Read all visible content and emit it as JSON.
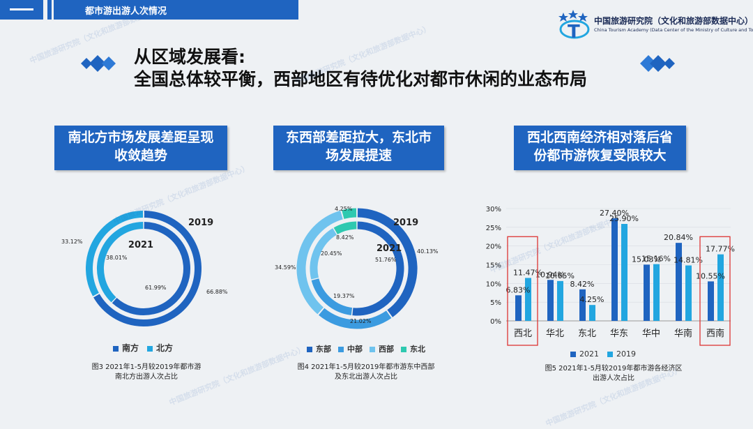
{
  "header": {
    "section_title": "都市游出游人次情况",
    "org_name": "中国旅游研究院（文化和旅游部数据中心）",
    "org_name_en": "China Tourism Academy (Data Center of the Ministry of Culture and Tourism)"
  },
  "headline": {
    "line1": "从区域发展看:",
    "line2": "全国总体较平衡，西部地区有待优化对都市休闲的业态布局"
  },
  "panels": [
    {
      "title_line1": "南北方市场发展差距呈现",
      "title_line2": "收敛趋势",
      "caption_line1": "图3  2021年1-5月较2019年都市游",
      "caption_line2": "南北方出游人次占比"
    },
    {
      "title_line1": "东西部差距拉大，东北市",
      "title_line2": "场发展提速",
      "caption_line1": "图4  2021年1-5月较2019年都市游东中西部",
      "caption_line2": "及东北出游人次占比"
    },
    {
      "title_line1": "西北西南经济相对落后省",
      "title_line2": "份都市游恢复受限较大",
      "caption_line1": "图5  2021年1-5月较2019年都市游各经济区",
      "caption_line2": "出游人次占比"
    }
  ],
  "watermark": "中国旅游研究院（文化和旅游部数据中心）",
  "colors": {
    "dark_blue": "#1f64c0",
    "light_blue": "#22a6e0",
    "mid_blue": "#3b9be0",
    "sky_blue": "#6fc3ee",
    "teal": "#2ec9b0"
  },
  "chart_data": [
    {
      "type": "donut",
      "year_outer": "2019",
      "year_inner": "2021",
      "categories": [
        "南方",
        "北方"
      ],
      "series": [
        {
          "name": "2019",
          "values": [
            66.88,
            33.12
          ],
          "labels": [
            "66.88%",
            "33.12%"
          ]
        },
        {
          "name": "2021",
          "values": [
            61.99,
            38.01
          ],
          "labels": [
            "61.99%",
            "38.01%"
          ]
        }
      ],
      "legend": "bottom"
    },
    {
      "type": "donut",
      "year_outer": "2019",
      "year_inner": "2021",
      "categories": [
        "东部",
        "中部",
        "西部",
        "东北"
      ],
      "series": [
        {
          "name": "2019",
          "values": [
            40.13,
            21.02,
            34.59,
            4.25
          ],
          "labels": [
            "40.13%",
            "21.02%",
            "34.59%",
            "4.25%"
          ]
        },
        {
          "name": "2021",
          "values": [
            51.76,
            19.37,
            20.45,
            8.42
          ],
          "labels": [
            "51.76%",
            "19.37%",
            "20.45%",
            "8.42%"
          ]
        }
      ],
      "legend": "bottom"
    },
    {
      "type": "bar",
      "categories": [
        "西北",
        "华北",
        "东北",
        "华东",
        "华中",
        "华南",
        "西南"
      ],
      "series": [
        {
          "name": "2021",
          "values": [
            6.83,
            10.94,
            8.42,
            27.4,
            15.03,
            20.84,
            10.55
          ]
        },
        {
          "name": "2019",
          "values": [
            11.47,
            10.65,
            4.25,
            25.9,
            15.16,
            14.81,
            17.77
          ]
        }
      ],
      "labels_2021": [
        "6.83%",
        "10.94%",
        "8.42%",
        "27.40%",
        "15.03%",
        "20.84%",
        "10.55%"
      ],
      "labels_2019": [
        "11.47%",
        "10.65%",
        "4.25%",
        "25.90%",
        "15.16%",
        "14.81%",
        "17.77%"
      ],
      "y_ticks": [
        "0%",
        "5%",
        "10%",
        "15%",
        "20%",
        "25%",
        "30%"
      ],
      "ylim": [
        0,
        30
      ],
      "highlighted": [
        "西北",
        "西南"
      ],
      "legend": "bottom"
    }
  ]
}
